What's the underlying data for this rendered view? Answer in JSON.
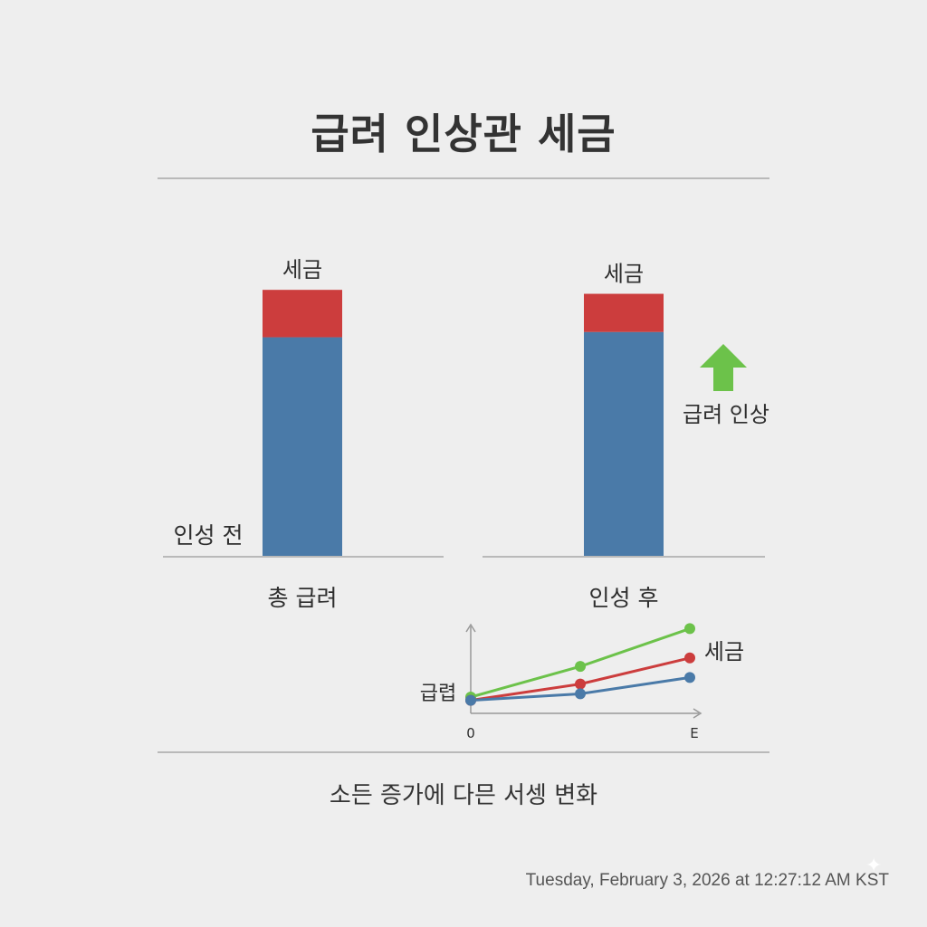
{
  "title": "급려 인상관 세금",
  "caption": "소든 증가에 다믄 서셍 변화",
  "timestamp": "Tuesday, February 3, 2026 at 12:27:12 AM KST",
  "colors": {
    "salary": "#4a7aa8",
    "tax": "#cc3d3d",
    "arrow": "#6cc24a",
    "line_green": "#6cc24a",
    "line_red": "#cc3d3d",
    "line_blue": "#4a7aa8",
    "axis": "#999999"
  },
  "arrow_icon": "up-arrow-icon",
  "arrow_label": "급려 인상",
  "chart_data": [
    {
      "type": "bar",
      "stacked": true,
      "categories": [
        "인성 전",
        "인성 후"
      ],
      "group_labels": [
        "총 급려",
        "인성 후"
      ],
      "side_labels": [
        "인성 전",
        ""
      ],
      "series": [
        {
          "name": "",
          "color": "#4a7aa8",
          "values": [
            0.83,
            0.85
          ]
        },
        {
          "name": "세금",
          "color": "#cc3d3d",
          "values": [
            0.18,
            0.145
          ]
        }
      ],
      "segment_labels": [
        "세금",
        "세금"
      ],
      "ylim": [
        0,
        1.1
      ],
      "grid": false
    },
    {
      "type": "line",
      "x": [
        0,
        1,
        2
      ],
      "x_tick_labels": [
        "0",
        "",
        "E"
      ],
      "ylabel": "급렵",
      "series_label": "세금",
      "series": [
        {
          "color": "#6cc24a",
          "values": [
            0.25,
            0.72,
            1.3
          ]
        },
        {
          "color": "#cc3d3d",
          "values": [
            0.2,
            0.45,
            0.85
          ]
        },
        {
          "color": "#4a7aa8",
          "values": [
            0.2,
            0.3,
            0.55
          ]
        }
      ],
      "ylim": [
        0,
        1.5
      ],
      "grid": false
    }
  ]
}
